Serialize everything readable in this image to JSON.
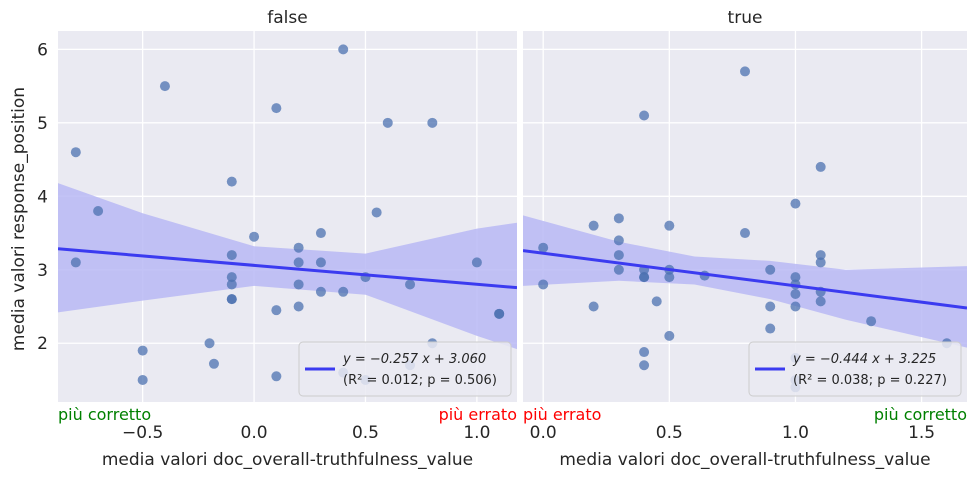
{
  "figure": {
    "ylabel": "media valori response_position"
  },
  "chart_data": [
    {
      "type": "scatter",
      "title": "false",
      "xlabel": "media valori doc_overall-truthfulness_value",
      "ylabel": "media valori response_position",
      "xlim": [
        -0.88,
        1.18
      ],
      "ylim": [
        1.2,
        6.25
      ],
      "xticks": [
        -0.5,
        0.0,
        0.5,
        1.0
      ],
      "xtick_labels": [
        "−0.5",
        "0.0",
        "0.5",
        "1.0"
      ],
      "yticks": [
        2,
        3,
        4,
        5,
        6
      ],
      "ytick_labels": [
        "2",
        "3",
        "4",
        "5",
        "6"
      ],
      "grid": true,
      "point_color": "#4c72b0",
      "line_color": "#3b3bf0",
      "band_color": "#b8b8f4",
      "points": [
        [
          -0.8,
          4.6
        ],
        [
          -0.8,
          3.1
        ],
        [
          -0.7,
          3.8
        ],
        [
          -0.5,
          1.9
        ],
        [
          -0.5,
          1.5
        ],
        [
          -0.4,
          5.5
        ],
        [
          -0.2,
          2.0
        ],
        [
          -0.18,
          1.72
        ],
        [
          -0.1,
          4.2
        ],
        [
          -0.1,
          3.2
        ],
        [
          -0.1,
          2.9
        ],
        [
          -0.1,
          2.8
        ],
        [
          -0.1,
          2.6
        ],
        [
          -0.1,
          2.6
        ],
        [
          0.0,
          3.45
        ],
        [
          0.1,
          5.2
        ],
        [
          0.1,
          2.45
        ],
        [
          0.1,
          1.55
        ],
        [
          0.2,
          3.3
        ],
        [
          0.2,
          3.1
        ],
        [
          0.2,
          2.8
        ],
        [
          0.2,
          2.5
        ],
        [
          0.3,
          3.5
        ],
        [
          0.3,
          3.1
        ],
        [
          0.3,
          2.7
        ],
        [
          0.4,
          6.0
        ],
        [
          0.4,
          2.7
        ],
        [
          0.4,
          1.6
        ],
        [
          0.5,
          2.9
        ],
        [
          0.5,
          1.5
        ],
        [
          0.55,
          3.78
        ],
        [
          0.6,
          5.0
        ],
        [
          0.7,
          2.8
        ],
        [
          0.7,
          1.7
        ],
        [
          0.8,
          5.0
        ],
        [
          0.8,
          2.0
        ],
        [
          1.0,
          3.1
        ],
        [
          1.1,
          2.4
        ],
        [
          1.1,
          2.4
        ]
      ],
      "regression": {
        "slope": -0.257,
        "intercept": 3.06
      },
      "band": {
        "x": [
          -0.88,
          -0.5,
          0.0,
          0.5,
          1.0,
          1.18
        ],
        "lower": [
          2.42,
          2.58,
          2.78,
          2.66,
          2.1,
          1.92
        ],
        "upper": [
          4.18,
          3.77,
          3.32,
          3.22,
          3.56,
          3.64
        ]
      },
      "legend": {
        "position": "lower-right",
        "line1": "y = −0.257 x + 3.060",
        "line2": "(R² = 0.012; p = 0.506)"
      },
      "corner_left": {
        "text": "più corretto",
        "color": "#008000"
      },
      "corner_right": {
        "text": "più errato",
        "color": "#ff0000"
      }
    },
    {
      "type": "scatter",
      "title": "true",
      "xlabel": "media valori doc_overall-truthfulness_value",
      "xlim": [
        -0.08,
        1.68
      ],
      "ylim": [
        1.2,
        6.25
      ],
      "xticks": [
        0.0,
        0.5,
        1.0,
        1.5
      ],
      "xtick_labels": [
        "0.0",
        "0.5",
        "1.0",
        "1.5"
      ],
      "yticks": [
        2,
        3,
        4,
        5,
        6
      ],
      "grid": true,
      "point_color": "#4c72b0",
      "line_color": "#3b3bf0",
      "band_color": "#b8b8f4",
      "points": [
        [
          0.0,
          3.3
        ],
        [
          0.0,
          2.8
        ],
        [
          0.2,
          3.6
        ],
        [
          0.2,
          2.5
        ],
        [
          0.3,
          3.7
        ],
        [
          0.3,
          3.4
        ],
        [
          0.3,
          3.2
        ],
        [
          0.3,
          3.0
        ],
        [
          0.4,
          5.1
        ],
        [
          0.4,
          3.0
        ],
        [
          0.4,
          2.9
        ],
        [
          0.4,
          2.9
        ],
        [
          0.4,
          1.88
        ],
        [
          0.4,
          1.7
        ],
        [
          0.45,
          2.57
        ],
        [
          0.5,
          3.6
        ],
        [
          0.5,
          3.0
        ],
        [
          0.5,
          2.9
        ],
        [
          0.5,
          2.1
        ],
        [
          0.64,
          2.92
        ],
        [
          0.8,
          5.7
        ],
        [
          0.8,
          3.5
        ],
        [
          0.9,
          3.0
        ],
        [
          0.9,
          2.5
        ],
        [
          0.9,
          2.2
        ],
        [
          1.0,
          3.9
        ],
        [
          1.0,
          2.9
        ],
        [
          1.0,
          2.8
        ],
        [
          1.0,
          2.67
        ],
        [
          1.0,
          2.5
        ],
        [
          1.0,
          1.8
        ],
        [
          1.0,
          1.5
        ],
        [
          1.0,
          1.4
        ],
        [
          1.1,
          4.4
        ],
        [
          1.1,
          3.2
        ],
        [
          1.1,
          3.1
        ],
        [
          1.1,
          2.7
        ],
        [
          1.1,
          2.57
        ],
        [
          1.3,
          2.3
        ],
        [
          1.6,
          2.0
        ]
      ],
      "regression": {
        "slope": -0.444,
        "intercept": 3.225
      },
      "band": {
        "x": [
          -0.08,
          0.3,
          0.6,
          0.9,
          1.2,
          1.68
        ],
        "lower": [
          2.78,
          2.85,
          2.8,
          2.6,
          2.32,
          1.94
        ],
        "upper": [
          3.74,
          3.38,
          3.18,
          3.12,
          3.0,
          3.05
        ]
      },
      "legend": {
        "position": "lower-right",
        "line1": "y = −0.444 x + 3.225",
        "line2": "(R² = 0.038; p = 0.227)"
      },
      "corner_left": {
        "text": "più errato",
        "color": "#ff0000"
      },
      "corner_right": {
        "text": "più corretto",
        "color": "#008000"
      }
    }
  ]
}
